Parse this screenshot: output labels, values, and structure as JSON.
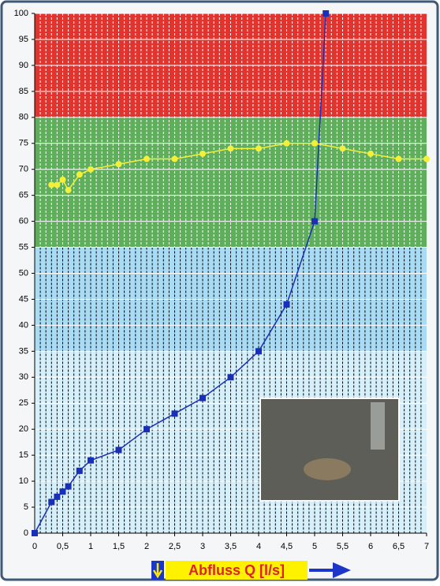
{
  "chart_data": {
    "type": "line",
    "xlabel": "Abfluss Q [l/s]",
    "xlim": [
      0,
      7
    ],
    "ylim": [
      0,
      100
    ],
    "xticks": [
      0,
      {
        "value": 0.5,
        "label": "0,5"
      },
      1,
      {
        "value": 1.5,
        "label": "1,5"
      },
      2,
      {
        "value": 2.5,
        "label": "2,5"
      },
      3,
      {
        "value": 3.5,
        "label": "3,5"
      },
      4,
      {
        "value": 4.5,
        "label": "4,5"
      },
      5,
      {
        "value": 5.5,
        "label": "5,5"
      },
      6,
      {
        "value": 6.5,
        "label": "6,5"
      },
      7
    ],
    "yticks": [
      0,
      5,
      10,
      15,
      20,
      25,
      30,
      35,
      40,
      45,
      50,
      55,
      60,
      65,
      70,
      75,
      80,
      85,
      90,
      95,
      100
    ],
    "x_minor_step": 0.1,
    "bands": [
      {
        "from": 80,
        "to": 100,
        "color": "#e1342f"
      },
      {
        "from": 55,
        "to": 80,
        "color": "#5fae5c"
      },
      {
        "from": 35,
        "to": 55,
        "color": "#a9dcf4"
      },
      {
        "from": 0,
        "to": 35,
        "color": "#d6f0fb"
      }
    ],
    "series": [
      {
        "color": "#1a2fb8",
        "marker": "square",
        "x": [
          0,
          0.3,
          0.4,
          0.5,
          0.6,
          0.8,
          1,
          1.5,
          2,
          2.5,
          3,
          3.5,
          4,
          4.5,
          5,
          5.2
        ],
        "values": [
          0,
          6,
          7,
          8,
          9,
          12,
          14,
          16,
          20,
          23,
          26,
          30,
          35,
          44,
          60,
          100
        ]
      },
      {
        "color": "#f5ef3a",
        "marker": "circle",
        "x": [
          0.3,
          0.4,
          0.5,
          0.6,
          0.8,
          1,
          1.5,
          2,
          2.5,
          3,
          3.5,
          4,
          4.5,
          5,
          5.5,
          6,
          6.5,
          7
        ],
        "values": [
          67,
          67,
          68,
          66,
          69,
          70,
          71,
          72,
          72,
          73,
          74,
          74,
          75,
          75,
          74,
          73,
          72,
          72
        ]
      }
    ]
  }
}
